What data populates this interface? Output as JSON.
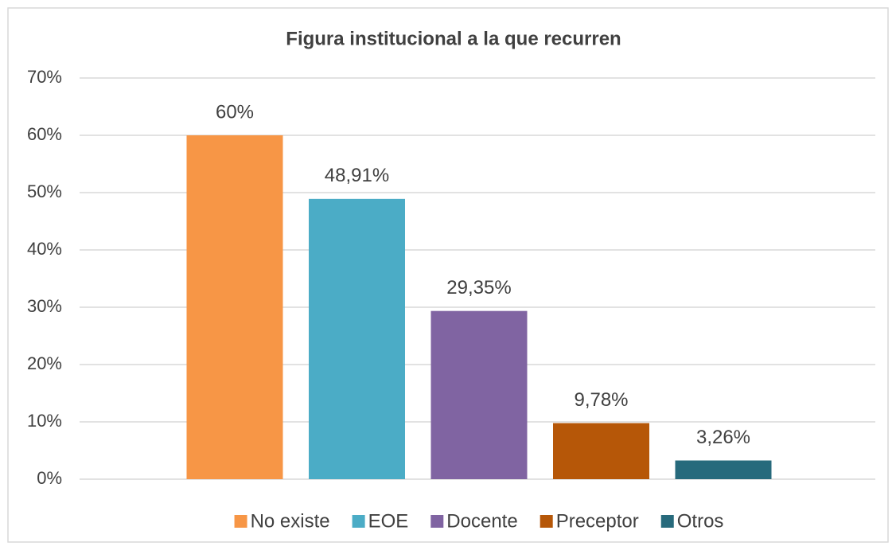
{
  "chart_data": {
    "type": "bar",
    "title": "Figura institucional a la que recurren",
    "series": [
      {
        "name": "No existe",
        "color": "#f79646",
        "values": [
          60
        ],
        "value_labels": [
          "60%"
        ]
      },
      {
        "name": "EOE",
        "color": "#4bacc6",
        "values": [
          48.91
        ],
        "value_labels": [
          "48,91%"
        ]
      },
      {
        "name": "Docente",
        "color": "#8064a2",
        "values": [
          29.35
        ],
        "value_labels": [
          "29,35%"
        ]
      },
      {
        "name": "Preceptor",
        "color": "#b65708",
        "values": [
          9.78
        ],
        "value_labels": [
          "9,78%"
        ]
      },
      {
        "name": "Otros",
        "color": "#276a7c",
        "values": [
          3.26
        ],
        "value_labels": [
          "3,26%"
        ]
      }
    ],
    "ylim": [
      0,
      70
    ],
    "yticks": [
      {
        "value": 0,
        "label": "0%"
      },
      {
        "value": 10,
        "label": "10%"
      },
      {
        "value": 20,
        "label": "20%"
      },
      {
        "value": 30,
        "label": "30%"
      },
      {
        "value": 40,
        "label": "40%"
      },
      {
        "value": 50,
        "label": "50%"
      },
      {
        "value": 60,
        "label": "60%"
      },
      {
        "value": 70,
        "label": "70%"
      }
    ],
    "grid": true,
    "legend": "bottom"
  }
}
